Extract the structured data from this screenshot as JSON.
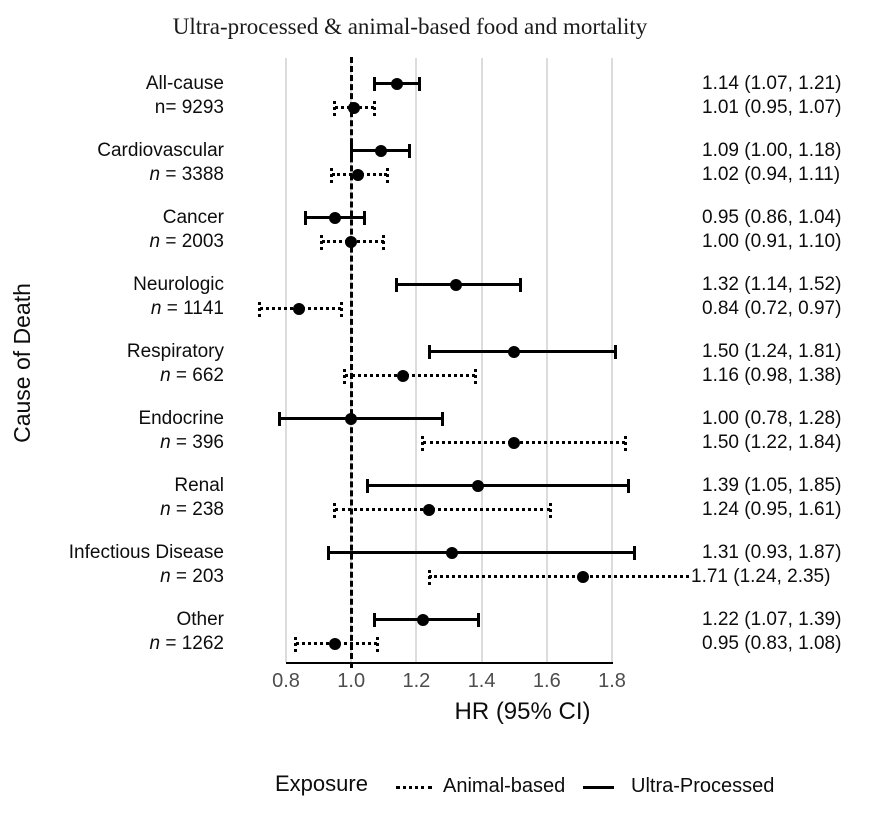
{
  "title": "Ultra-processed & animal-based food and mortality",
  "colors": {
    "foreground": "#000000",
    "gridline": "#dcdcdc",
    "tick_label": "#4d4d4d",
    "background": "#ffffff"
  },
  "chart_data": {
    "type": "forest",
    "title": "Ultra-processed & animal-based food and mortality",
    "xlabel": "HR (95% CI)",
    "ylabel": "Cause of Death",
    "xlim": [
      0.8,
      1.8
    ],
    "x_ticks": [
      "0.8",
      "1.0",
      "1.2",
      "1.4",
      "1.6",
      "1.8"
    ],
    "reference_line": 1.0,
    "grid": "vertical-light-gray",
    "legend": {
      "title": "Exposure",
      "position": "bottom",
      "entries": [
        {
          "label": "Animal-based",
          "line_style": "dotted"
        },
        {
          "label": "Ultra-Processed",
          "line_style": "solid"
        }
      ]
    },
    "groups": [
      {
        "cause": "All-cause",
        "n_label": "n= 9293",
        "n_italic": false,
        "series": [
          {
            "exposure": "Ultra-Processed",
            "style": "solid",
            "hr": 1.14,
            "ci_low": 1.07,
            "ci_high": 1.21,
            "label": "1.14 (1.07, 1.21)"
          },
          {
            "exposure": "Animal-based",
            "style": "dotted",
            "hr": 1.01,
            "ci_low": 0.95,
            "ci_high": 1.07,
            "label": "1.01 (0.95, 1.07)"
          }
        ]
      },
      {
        "cause": "Cardiovascular",
        "n_label": "n = 3388",
        "n_italic": true,
        "series": [
          {
            "exposure": "Ultra-Processed",
            "style": "solid",
            "hr": 1.09,
            "ci_low": 1.0,
            "ci_high": 1.18,
            "label": "1.09 (1.00, 1.18)"
          },
          {
            "exposure": "Animal-based",
            "style": "dotted",
            "hr": 1.02,
            "ci_low": 0.94,
            "ci_high": 1.11,
            "label": "1.02 (0.94, 1.11)"
          }
        ]
      },
      {
        "cause": "Cancer",
        "n_label": "n = 2003",
        "n_italic": true,
        "series": [
          {
            "exposure": "Ultra-Processed",
            "style": "solid",
            "hr": 0.95,
            "ci_low": 0.86,
            "ci_high": 1.04,
            "label": "0.95 (0.86, 1.04)"
          },
          {
            "exposure": "Animal-based",
            "style": "dotted",
            "hr": 1.0,
            "ci_low": 0.91,
            "ci_high": 1.1,
            "label": "1.00 (0.91, 1.10)"
          }
        ]
      },
      {
        "cause": "Neurologic",
        "n_label": "n = 1141",
        "n_italic": true,
        "series": [
          {
            "exposure": "Ultra-Processed",
            "style": "solid",
            "hr": 1.32,
            "ci_low": 1.14,
            "ci_high": 1.52,
            "label": "1.32 (1.14, 1.52)"
          },
          {
            "exposure": "Animal-based",
            "style": "dotted",
            "hr": 0.84,
            "ci_low": 0.72,
            "ci_high": 0.97,
            "label": "0.84 (0.72, 0.97)"
          }
        ]
      },
      {
        "cause": "Respiratory",
        "n_label": "n = 662",
        "n_italic": true,
        "series": [
          {
            "exposure": "Ultra-Processed",
            "style": "solid",
            "hr": 1.5,
            "ci_low": 1.24,
            "ci_high": 1.81,
            "label": "1.50 (1.24, 1.81)"
          },
          {
            "exposure": "Animal-based",
            "style": "dotted",
            "hr": 1.16,
            "ci_low": 0.98,
            "ci_high": 1.38,
            "label": "1.16 (0.98, 1.38)"
          }
        ]
      },
      {
        "cause": "Endocrine",
        "n_label": "n = 396",
        "n_italic": true,
        "series": [
          {
            "exposure": "Ultra-Processed",
            "style": "solid",
            "hr": 1.0,
            "ci_low": 0.78,
            "ci_high": 1.28,
            "label": "1.00 (0.78, 1.28)"
          },
          {
            "exposure": "Animal-based",
            "style": "dotted",
            "hr": 1.5,
            "ci_low": 1.22,
            "ci_high": 1.84,
            "label": "1.50 (1.22, 1.84)"
          }
        ]
      },
      {
        "cause": "Renal",
        "n_label": "n = 238",
        "n_italic": true,
        "series": [
          {
            "exposure": "Ultra-Processed",
            "style": "solid",
            "hr": 1.39,
            "ci_low": 1.05,
            "ci_high": 1.85,
            "label": "1.39 (1.05, 1.85)"
          },
          {
            "exposure": "Animal-based",
            "style": "dotted",
            "hr": 1.24,
            "ci_low": 0.95,
            "ci_high": 1.61,
            "label": "1.24 (0.95, 1.61)"
          }
        ]
      },
      {
        "cause": "Infectious Disease",
        "n_label": "n = 203",
        "n_italic": true,
        "series": [
          {
            "exposure": "Ultra-Processed",
            "style": "solid",
            "hr": 1.31,
            "ci_low": 0.93,
            "ci_high": 1.87,
            "label": "1.31 (0.93, 1.87)"
          },
          {
            "exposure": "Animal-based",
            "style": "dotted",
            "hr": 1.71,
            "ci_low": 1.24,
            "ci_high": 2.35,
            "ci_high_offscale": true,
            "label": "1.71 (1.24, 2.35)"
          }
        ]
      },
      {
        "cause": "Other",
        "n_label": "n = 1262",
        "n_italic": true,
        "series": [
          {
            "exposure": "Ultra-Processed",
            "style": "solid",
            "hr": 1.22,
            "ci_low": 1.07,
            "ci_high": 1.39,
            "label": "1.22 (1.07, 1.39)"
          },
          {
            "exposure": "Animal-based",
            "style": "dotted",
            "hr": 0.95,
            "ci_low": 0.83,
            "ci_high": 1.08,
            "label": "0.95 (0.83, 1.08)"
          }
        ]
      }
    ]
  }
}
